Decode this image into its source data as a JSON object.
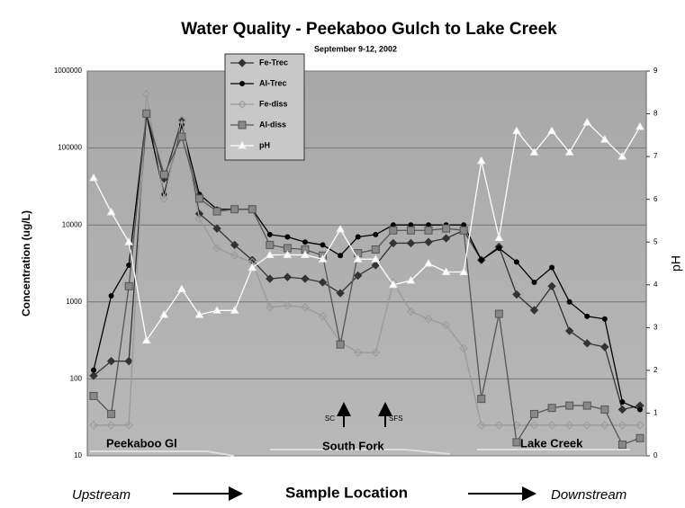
{
  "chart_data": {
    "type": "line",
    "title": "Water Quality - Peekaboo Gulch to Lake Creek",
    "subtitle": "September 9-12, 2002",
    "y_label": "Concentration (ug/L)",
    "y2_label": "pH",
    "x_label": "Sample Location",
    "annotations": [
      "Upstream",
      "Downstream",
      "Peekaboo Gl",
      "South Fork",
      "Lake Creek",
      "SC",
      "SFS"
    ],
    "ylog": true,
    "ylim": [
      10,
      1000000
    ],
    "yticks": [
      10,
      100,
      1000,
      10000,
      100000,
      1000000
    ],
    "y2lim": [
      0,
      9
    ],
    "y2ticks": [
      0,
      1,
      2,
      3,
      4,
      5,
      6,
      7,
      8,
      9
    ],
    "grid": true,
    "legend": "top-left",
    "categories": [
      null,
      null,
      null,
      null,
      null,
      null,
      null,
      null,
      null,
      null,
      null,
      null,
      null,
      null,
      null,
      null,
      null,
      null,
      null,
      null,
      null,
      null,
      null,
      null,
      null,
      null,
      null,
      null,
      null,
      null,
      null,
      null
    ],
    "series": [
      {
        "name": "Fe-Trec",
        "color": "#333333",
        "marker": "diamond",
        "values": [
          110,
          170,
          170,
          270000,
          40000,
          230000,
          14000,
          9000,
          5500,
          3500,
          2000,
          2100,
          2000,
          1800,
          1300,
          2200,
          3000,
          5800,
          5800,
          6000,
          6700,
          8500,
          3500,
          5200,
          1250,
          780,
          1600,
          420,
          290,
          260,
          40,
          45
        ]
      },
      {
        "name": "Al-Trec",
        "color": "#000000",
        "marker": "circle",
        "values": [
          130,
          1200,
          3000,
          270000,
          25000,
          200000,
          25000,
          16000,
          16000,
          16000,
          7500,
          7000,
          6000,
          5500,
          4000,
          7000,
          7500,
          10000,
          10000,
          10000,
          10000,
          10000,
          3500,
          5000,
          3300,
          1800,
          2800,
          1000,
          650,
          600,
          50,
          40
        ]
      },
      {
        "name": "Fe-diss",
        "color": "#9a9a9a",
        "marker": "open-diamond",
        "values": [
          25,
          25,
          25,
          500000,
          22000,
          230000,
          12000,
          5000,
          4000,
          3300,
          850,
          900,
          850,
          650,
          300,
          220,
          220,
          1800,
          750,
          600,
          500,
          250,
          25,
          25,
          25,
          25,
          25,
          25,
          25,
          25,
          25,
          25
        ]
      },
      {
        "name": "Al-diss",
        "color": "#555555",
        "marker": "square",
        "values": [
          60,
          35,
          1600,
          280000,
          45000,
          140000,
          22000,
          15000,
          16000,
          16000,
          5500,
          5000,
          4800,
          4000,
          280,
          4300,
          4800,
          8500,
          8500,
          8500,
          9000,
          8500,
          55,
          700,
          15,
          35,
          42,
          45,
          45,
          40,
          14,
          17
        ]
      },
      {
        "name": "pH",
        "color": "#ffffff",
        "marker": "triangle",
        "axis": "y2",
        "values": [
          6.5,
          5.7,
          5.0,
          2.7,
          3.3,
          3.9,
          3.3,
          3.4,
          3.4,
          4.4,
          4.7,
          4.7,
          4.7,
          4.6,
          5.3,
          4.6,
          4.6,
          4.0,
          4.1,
          4.5,
          4.3,
          4.3,
          6.9,
          5.1,
          7.6,
          7.1,
          7.6,
          7.1,
          7.8,
          7.4,
          7.0,
          7.7
        ]
      }
    ]
  }
}
